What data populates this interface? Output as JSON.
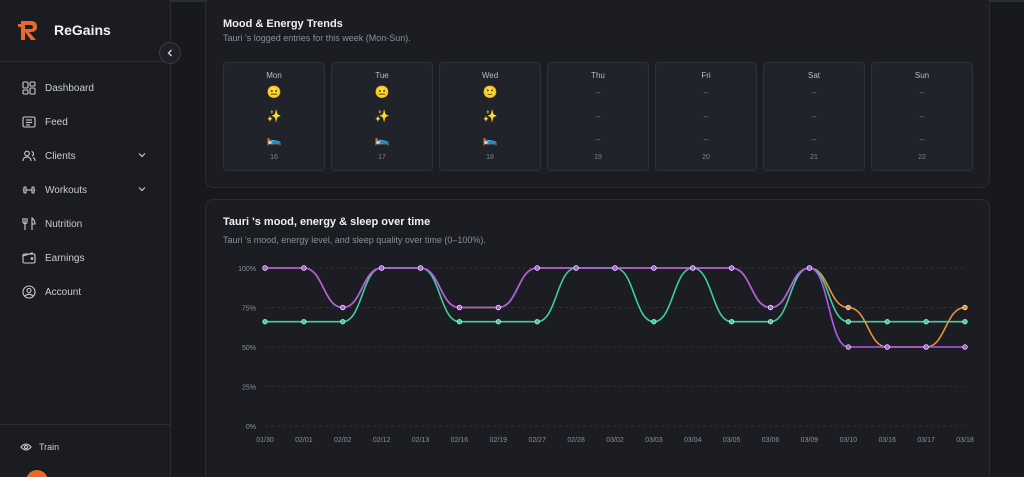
{
  "app": {
    "name": "ReGains",
    "brand_color": "#e8692e"
  },
  "sidebar": {
    "items": [
      {
        "label": "Dashboard",
        "icon": "dashboard-icon",
        "has_submenu": false
      },
      {
        "label": "Feed",
        "icon": "feed-icon",
        "has_submenu": false
      },
      {
        "label": "Clients",
        "icon": "users-icon",
        "has_submenu": true
      },
      {
        "label": "Workouts",
        "icon": "dumbbell-icon",
        "has_submenu": true
      },
      {
        "label": "Nutrition",
        "icon": "utensils-icon",
        "has_submenu": false
      },
      {
        "label": "Earnings",
        "icon": "wallet-icon",
        "has_submenu": false
      },
      {
        "label": "Account",
        "icon": "user-circle-icon",
        "has_submenu": false
      }
    ],
    "mode_label": "Train"
  },
  "trends": {
    "title": "Mood & Energy Trends",
    "subtitle": "Tauri 's logged entries for this week (Mon-Sun).",
    "days": [
      {
        "name": "Mon",
        "date": "16",
        "mood": "😐",
        "energy": "✨",
        "sleep": "🛌"
      },
      {
        "name": "Tue",
        "date": "17",
        "mood": "😐",
        "energy": "✨",
        "sleep": "🛌"
      },
      {
        "name": "Wed",
        "date": "18",
        "mood": "🙂",
        "energy": "✨",
        "sleep": "🛌"
      },
      {
        "name": "Thu",
        "date": "19",
        "mood": "–",
        "energy": "–",
        "sleep": "–"
      },
      {
        "name": "Fri",
        "date": "20",
        "mood": "–",
        "energy": "–",
        "sleep": "–"
      },
      {
        "name": "Sat",
        "date": "21",
        "mood": "–",
        "energy": "–",
        "sleep": "–"
      },
      {
        "name": "Sun",
        "date": "22",
        "mood": "–",
        "energy": "–",
        "sleep": "–"
      }
    ]
  },
  "over_time": {
    "title": "Tauri 's mood, energy & sleep over time",
    "subtitle": "Tauri 's mood, energy level, and sleep quality over time (0–100%)."
  },
  "chart_data": {
    "type": "line",
    "x": [
      "01/30",
      "02/01",
      "02/02",
      "02/12",
      "02/13",
      "02/16",
      "02/19",
      "02/27",
      "02/28",
      "03/02",
      "03/03",
      "03/04",
      "03/05",
      "03/06",
      "03/09",
      "03/10",
      "03/16",
      "03/17",
      "03/18"
    ],
    "yticks": [
      "0%",
      "25%",
      "50%",
      "75%",
      "100%"
    ],
    "ylim": [
      0,
      100
    ],
    "grid": true,
    "series": [
      {
        "color": "#e8913a",
        "values": [
          100,
          100,
          75,
          100,
          100,
          75,
          75,
          100,
          100,
          100,
          100,
          100,
          100,
          75,
          100,
          75,
          50,
          50,
          75
        ]
      },
      {
        "color": "#3fcf9e",
        "values": [
          66,
          66,
          66,
          100,
          100,
          66,
          66,
          66,
          100,
          100,
          66,
          100,
          66,
          66,
          100,
          66,
          66,
          66,
          66
        ]
      },
      {
        "color": "#b15ae6",
        "values": [
          100,
          100,
          75,
          100,
          100,
          75,
          75,
          100,
          100,
          100,
          100,
          100,
          100,
          75,
          100,
          50,
          50,
          50,
          50
        ]
      }
    ]
  }
}
